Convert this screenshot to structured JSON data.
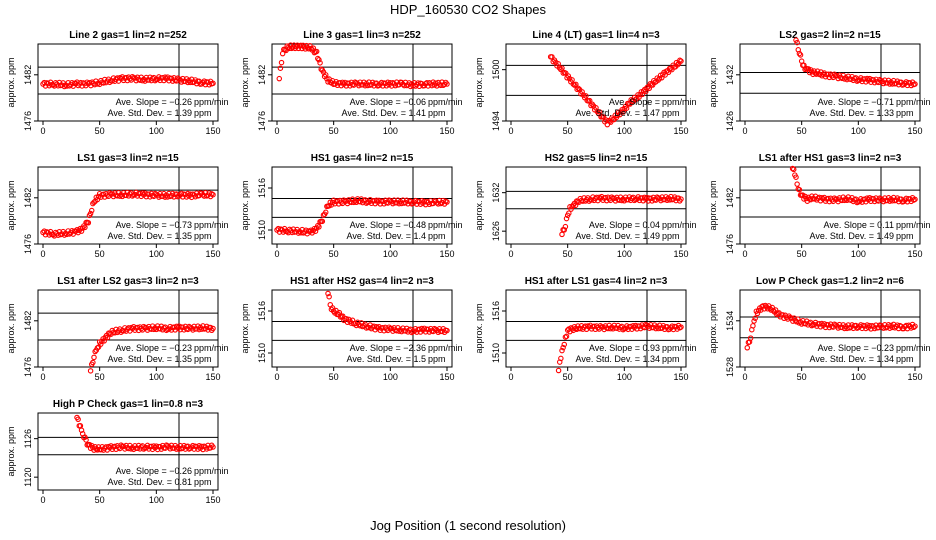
{
  "page_title": "HDP_160530  CO2 Shapes",
  "x_axis_label": "Jog Position (1 second resolution)",
  "ylabel": "approx. ppm",
  "marker_color": "#ff0000",
  "slope_label": "Ave. Slope =",
  "slope_unit": "ppm/min",
  "std_label": "Ave. Std. Dev. =",
  "std_unit": "ppm",
  "chart_data": [
    {
      "type": "scatter",
      "title": "Line 2 gas=1 lin=2 n=252",
      "xlim": [
        0,
        150
      ],
      "ylim": [
        1476,
        1486
      ],
      "yticks": [
        1476,
        1482
      ],
      "xticks": [
        0,
        50,
        100,
        150
      ],
      "hlines": [
        1483,
        1479.5
      ],
      "vline": 120,
      "slope": "−0.26",
      "std": "1.39",
      "x": [
        0,
        10,
        20,
        30,
        40,
        50,
        60,
        70,
        80,
        90,
        100,
        110,
        120,
        130,
        140,
        150
      ],
      "y": [
        1480.8,
        1480.8,
        1480.7,
        1480.8,
        1480.8,
        1481.0,
        1481.3,
        1481.5,
        1481.5,
        1481.4,
        1481.5,
        1481.5,
        1481.3,
        1481.2,
        1481.0,
        1480.9
      ]
    },
    {
      "type": "scatter",
      "title": "Line 3 gas=1 lin=3 n=252",
      "xlim": [
        0,
        150
      ],
      "ylim": [
        1476,
        1486
      ],
      "yticks": [
        1476,
        1482
      ],
      "xticks": [
        0,
        50,
        100,
        150
      ],
      "hlines": [
        1483,
        1479.5
      ],
      "vline": 120,
      "slope": "−0.06",
      "std": "1.41",
      "x": [
        2,
        5,
        10,
        15,
        20,
        25,
        30,
        35,
        40,
        45,
        50,
        60,
        70,
        80,
        90,
        100,
        110,
        120,
        130,
        140,
        150
      ],
      "y": [
        1481.5,
        1485.0,
        1485.6,
        1485.6,
        1485.7,
        1485.6,
        1485.5,
        1484.8,
        1482.5,
        1481.3,
        1480.9,
        1480.8,
        1480.8,
        1480.8,
        1480.8,
        1480.8,
        1480.8,
        1480.7,
        1480.8,
        1480.8,
        1480.8
      ]
    },
    {
      "type": "scatter",
      "title": "Line 4 (LT) gas=1 lin=4 n=3",
      "xlim": [
        0,
        150
      ],
      "ylim": [
        1494,
        1503
      ],
      "yticks": [
        1494,
        1500
      ],
      "xticks": [
        0,
        50,
        100,
        150
      ],
      "hlines": [
        1500.5,
        1497.0
      ],
      "vline": 120,
      "slope": "",
      "std": "1.47",
      "x": [
        35,
        85,
        90,
        95,
        100,
        105,
        110,
        115,
        120,
        125,
        130,
        135,
        140,
        145,
        150
      ],
      "y": [
        1501.5,
        1493.8,
        1494.2,
        1494.8,
        1495.4,
        1496.2,
        1496.6,
        1497.2,
        1497.8,
        1498.4,
        1498.9,
        1499.5,
        1500.0,
        1500.5,
        1501.0
      ]
    },
    {
      "type": "scatter",
      "title": "LS2 gas=2 lin=2 n=15",
      "xlim": [
        0,
        150
      ],
      "ylim": [
        1426,
        1436
      ],
      "yticks": [
        1426,
        1432
      ],
      "xticks": [
        0,
        50,
        100,
        150
      ],
      "hlines": [
        1432.3,
        1429.6
      ],
      "vline": 120,
      "slope": "−0.71",
      "std": "1.33",
      "x": [
        45,
        48,
        50,
        52,
        55,
        60,
        65,
        70,
        80,
        90,
        100,
        110,
        120,
        130,
        140,
        150
      ],
      "y": [
        1436.5,
        1435.0,
        1433.8,
        1433.0,
        1432.7,
        1432.3,
        1432.2,
        1432.0,
        1431.8,
        1431.6,
        1431.4,
        1431.3,
        1431.1,
        1431.0,
        1430.9,
        1430.8
      ]
    },
    {
      "type": "scatter",
      "title": "LS1 gas=3 lin=2 n=15",
      "xlim": [
        0,
        150
      ],
      "ylim": [
        1476,
        1486
      ],
      "yticks": [
        1476,
        1482
      ],
      "xticks": [
        0,
        50,
        100,
        150
      ],
      "hlines": [
        1483,
        1479.5
      ],
      "vline": 120,
      "slope": "−0.73",
      "std": "1.35",
      "x": [
        0,
        10,
        20,
        30,
        35,
        40,
        45,
        50,
        60,
        70,
        80,
        90,
        100,
        110,
        120,
        130,
        140,
        150
      ],
      "y": [
        1477.5,
        1477.3,
        1477.4,
        1477.6,
        1478.0,
        1479.0,
        1481.5,
        1482.3,
        1482.4,
        1482.4,
        1482.5,
        1482.4,
        1482.3,
        1482.3,
        1482.4,
        1482.3,
        1482.4,
        1482.4
      ]
    },
    {
      "type": "scatter",
      "title": "HS1 gas=4 lin=2 n=15",
      "xlim": [
        0,
        150
      ],
      "ylim": [
        1508,
        1519
      ],
      "yticks": [
        1510,
        1516
      ],
      "xticks": [
        0,
        50,
        100,
        150
      ],
      "hlines": [
        1514.5,
        1511.8
      ],
      "vline": 120,
      "slope": "−0.48",
      "std": "1.4",
      "x": [
        0,
        10,
        20,
        30,
        35,
        40,
        45,
        50,
        60,
        70,
        80,
        90,
        100,
        110,
        120,
        130,
        140,
        150
      ],
      "y": [
        1510.0,
        1509.9,
        1509.8,
        1509.7,
        1510.2,
        1511.5,
        1513.5,
        1514.0,
        1514.0,
        1514.2,
        1514.1,
        1514.0,
        1514.0,
        1514.0,
        1514.0,
        1513.9,
        1513.9,
        1514.0
      ]
    },
    {
      "type": "scatter",
      "title": "HS2 gas=5 lin=2 n=15",
      "xlim": [
        0,
        150
      ],
      "ylim": [
        1624,
        1636
      ],
      "yticks": [
        1626,
        1632
      ],
      "xticks": [
        0,
        50,
        100,
        150
      ],
      "hlines": [
        1632.2,
        1629.5
      ],
      "vline": 120,
      "slope": "0.04",
      "std": "1.49",
      "x": [
        45,
        48,
        50,
        52,
        55,
        60,
        70,
        80,
        90,
        100,
        110,
        120,
        130,
        140,
        150
      ],
      "y": [
        1625.5,
        1627.0,
        1628.5,
        1629.5,
        1630.0,
        1630.8,
        1631.0,
        1631.1,
        1631.0,
        1631.0,
        1631.1,
        1631.0,
        1631.0,
        1631.1,
        1631.0
      ]
    },
    {
      "type": "scatter",
      "title": "LS1 after HS1 gas=3 lin=2 n=3",
      "xlim": [
        0,
        150
      ],
      "ylim": [
        1476,
        1486
      ],
      "yticks": [
        1476,
        1482
      ],
      "xticks": [
        0,
        50,
        100,
        150
      ],
      "hlines": [
        1483,
        1479.5
      ],
      "vline": 120,
      "slope": "0.11",
      "std": "1.49",
      "x": [
        42,
        44,
        46,
        48,
        50,
        55,
        60,
        70,
        80,
        90,
        100,
        110,
        120,
        130,
        140,
        150
      ],
      "y": [
        1485.8,
        1485.2,
        1483.8,
        1482.8,
        1482.3,
        1481.8,
        1482.0,
        1481.8,
        1481.7,
        1481.9,
        1481.6,
        1481.8,
        1481.7,
        1481.8,
        1481.7,
        1481.8
      ]
    },
    {
      "type": "scatter",
      "title": "LS1 after LS2 gas=3 lin=2 n=3",
      "xlim": [
        0,
        150
      ],
      "ylim": [
        1476,
        1486
      ],
      "yticks": [
        1476,
        1482
      ],
      "xticks": [
        0,
        50,
        100,
        150
      ],
      "hlines": [
        1483,
        1479.5
      ],
      "vline": 120,
      "slope": "−0.23",
      "std": "1.35",
      "x": [
        42,
        45,
        48,
        50,
        55,
        60,
        70,
        80,
        90,
        100,
        110,
        120,
        130,
        140,
        150
      ],
      "y": [
        1475.5,
        1477.5,
        1478.5,
        1479.0,
        1479.8,
        1480.5,
        1480.8,
        1481.0,
        1481.0,
        1481.1,
        1481.0,
        1481.1,
        1481.0,
        1481.1,
        1481.0
      ]
    },
    {
      "type": "scatter",
      "title": "HS1 after HS2 gas=4 lin=2 n=3",
      "xlim": [
        0,
        150
      ],
      "ylim": [
        1508,
        1519
      ],
      "yticks": [
        1510,
        1516
      ],
      "xticks": [
        0,
        50,
        100,
        150
      ],
      "hlines": [
        1514.5,
        1511.8
      ],
      "vline": 120,
      "slope": "−2.36",
      "std": "1.5",
      "x": [
        45,
        48,
        50,
        55,
        60,
        70,
        80,
        90,
        100,
        110,
        120,
        130,
        140,
        150
      ],
      "y": [
        1518.5,
        1516.5,
        1516.0,
        1515.5,
        1514.8,
        1514.2,
        1513.8,
        1513.5,
        1513.4,
        1513.3,
        1513.2,
        1513.3,
        1513.2,
        1513.2
      ]
    },
    {
      "type": "scatter",
      "title": "HS1 after LS1 gas=4 lin=2 n=3",
      "xlim": [
        0,
        150
      ],
      "ylim": [
        1508,
        1519
      ],
      "yticks": [
        1510,
        1516
      ],
      "xticks": [
        0,
        50,
        100,
        150
      ],
      "hlines": [
        1514.5,
        1511.8
      ],
      "vline": 120,
      "slope": "0.93",
      "std": "1.34",
      "x": [
        42,
        44,
        46,
        48,
        50,
        55,
        60,
        70,
        80,
        90,
        100,
        110,
        120,
        130,
        140,
        150
      ],
      "y": [
        1507.5,
        1509.5,
        1510.8,
        1512.0,
        1513.2,
        1513.5,
        1513.6,
        1513.7,
        1513.6,
        1513.7,
        1513.6,
        1513.7,
        1513.8,
        1513.7,
        1513.6,
        1513.7
      ]
    },
    {
      "type": "scatter",
      "title": "Low P Check gas=1.2 lin=2 n=6",
      "xlim": [
        0,
        150
      ],
      "ylim": [
        1528,
        1538
      ],
      "yticks": [
        1528,
        1534
      ],
      "xticks": [
        0,
        50,
        100,
        150
      ],
      "hlines": [
        1534.5,
        1531.8
      ],
      "vline": 120,
      "slope": "−0.23",
      "std": "1.34",
      "x": [
        2,
        5,
        8,
        10,
        15,
        20,
        25,
        30,
        40,
        50,
        60,
        70,
        80,
        90,
        100,
        110,
        120,
        130,
        140,
        150
      ],
      "y": [
        1530.5,
        1532.0,
        1534.0,
        1535.0,
        1535.8,
        1535.8,
        1535.4,
        1534.8,
        1534.3,
        1533.8,
        1533.6,
        1533.4,
        1533.3,
        1533.2,
        1533.3,
        1533.2,
        1533.2,
        1533.3,
        1533.2,
        1533.3
      ]
    },
    {
      "type": "scatter",
      "title": "High P Check gas=1 lin=0.8 n=3",
      "xlim": [
        0,
        150
      ],
      "ylim": [
        1118,
        1130
      ],
      "yticks": [
        1120,
        1126
      ],
      "xticks": [
        0,
        50,
        100,
        150
      ],
      "hlines": [
        1126.2,
        1123.5
      ],
      "vline": 120,
      "slope": "−0.26",
      "std": "0.81",
      "x": [
        30,
        32,
        35,
        38,
        40,
        45,
        50,
        60,
        70,
        80,
        90,
        100,
        110,
        120,
        130,
        140,
        150
      ],
      "y": [
        1129.3,
        1128.3,
        1126.8,
        1125.5,
        1125.0,
        1124.5,
        1124.4,
        1124.6,
        1124.7,
        1124.6,
        1124.7,
        1124.6,
        1124.7,
        1124.6,
        1124.7,
        1124.6,
        1124.7
      ]
    }
  ]
}
